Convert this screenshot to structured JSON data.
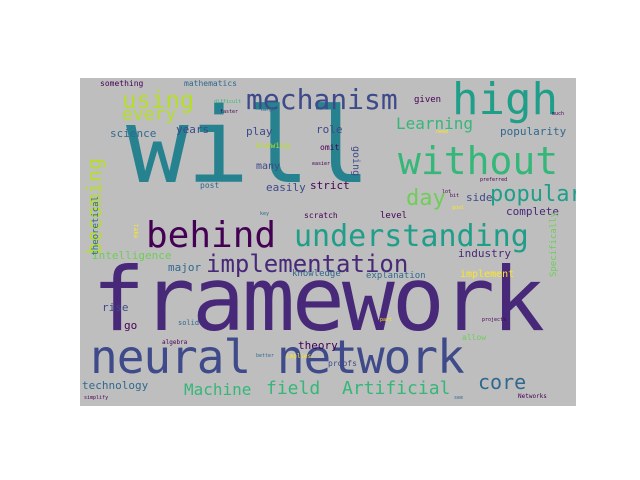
{
  "figure": {
    "background": "#bebebe",
    "colors": {
      "dark_purple": "#440154",
      "purple": "#482878",
      "blue": "#3e4a89",
      "steel": "#31688e",
      "teal": "#26828e",
      "green_teal": "#1f9e89",
      "green": "#35b779",
      "light_green": "#6ece58",
      "yellow_green": "#b5de2b",
      "yellow": "#fde725"
    },
    "words": [
      {
        "text": "will"
      },
      {
        "text": "framework"
      },
      {
        "text": "neural network"
      },
      {
        "text": "high"
      },
      {
        "text": "without"
      },
      {
        "text": "mechanism"
      },
      {
        "text": "behind"
      },
      {
        "text": "understanding"
      },
      {
        "text": "implementation"
      },
      {
        "text": "using"
      },
      {
        "text": "every"
      },
      {
        "text": "becoming"
      },
      {
        "text": "popular"
      },
      {
        "text": "day"
      },
      {
        "text": "Learning"
      },
      {
        "text": "Machine"
      },
      {
        "text": "field"
      },
      {
        "text": "Artificial"
      },
      {
        "text": "core"
      },
      {
        "text": "Intelligence"
      },
      {
        "text": "technology"
      },
      {
        "text": "popularity"
      },
      {
        "text": "science"
      },
      {
        "text": "years"
      },
      {
        "text": "play"
      },
      {
        "text": "role"
      },
      {
        "text": "many"
      },
      {
        "text": "strict"
      },
      {
        "text": "going"
      },
      {
        "text": "easily"
      },
      {
        "text": "side"
      },
      {
        "text": "complete"
      },
      {
        "text": "industry"
      },
      {
        "text": "theoretical"
      },
      {
        "text": "major"
      },
      {
        "text": "rise"
      },
      {
        "text": "go"
      },
      {
        "text": "theory"
      },
      {
        "text": "level"
      },
      {
        "text": "knowledge"
      },
      {
        "text": "explanation"
      },
      {
        "text": "implement"
      },
      {
        "text": "Specifically"
      },
      {
        "text": "something"
      },
      {
        "text": "mathematics"
      },
      {
        "text": "given"
      },
      {
        "text": "knowing"
      },
      {
        "text": "scratch"
      },
      {
        "text": "proofs"
      },
      {
        "text": "omit"
      },
      {
        "text": "post"
      },
      {
        "text": "solid"
      },
      {
        "text": "algebra"
      },
      {
        "text": "allow"
      },
      {
        "text": "implies"
      },
      {
        "text": "faster"
      },
      {
        "text": "difficult"
      },
      {
        "text": "much"
      },
      {
        "text": "large"
      },
      {
        "text": "preferred"
      },
      {
        "text": "easier"
      },
      {
        "text": "better"
      },
      {
        "text": "key"
      },
      {
        "text": "goal"
      },
      {
        "text": "projects"
      },
      {
        "text": "simplify"
      },
      {
        "text": "see"
      },
      {
        "text": "take"
      },
      {
        "text": "lot"
      },
      {
        "text": "Networks"
      },
      {
        "text": "bit"
      },
      {
        "text": "need"
      },
      {
        "text": "part"
      }
    ]
  }
}
